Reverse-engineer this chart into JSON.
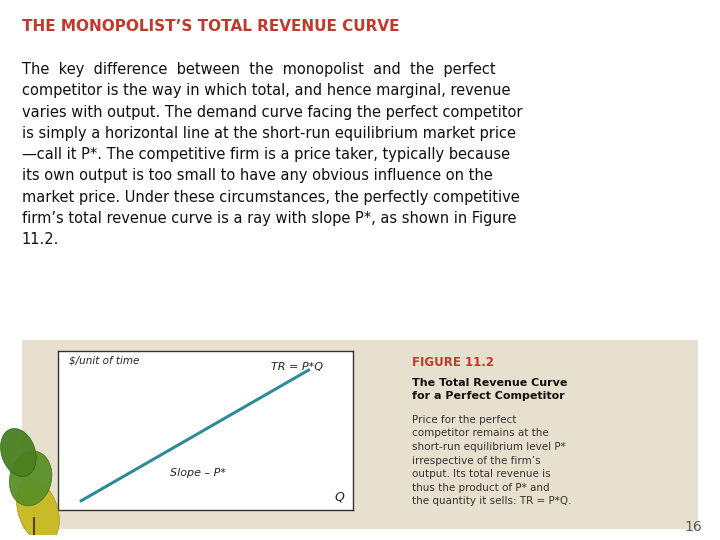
{
  "title": "THE MONOPOLIST’S TOTAL REVENUE CURVE",
  "title_color": "#c0392b",
  "title_fontsize": 11,
  "body_text": "The  key  difference  between  the  monopolist  and  the  perfect\ncompetitor is the way in which total, and hence marginal, revenue\nvaries with output. The demand curve facing the perfect competitor\nis simply a horizontal line at the short-run equilibrium market price\n—call it P*. The competitive firm is a price taker, typically because\nits own output is too small to have any obvious influence on the\nmarket price. Under these circumstances, the perfectly competitive\nfirm’s total revenue curve is a ray with slope P*, as shown in Figure\n11.2.",
  "body_fontsize": 10.5,
  "bg_color": "#ffffff",
  "figure_bg_color": "#e8e0cf",
  "graph_bg_color": "#ffffff",
  "graph_border_color": "#333333",
  "line_color": "#2e8b9a",
  "graph_ylabel": "$/unit of time",
  "graph_xlabel": "Q",
  "graph_line_label": "TR = P*Q",
  "graph_slope_label": "Slope – P*",
  "figure_title": "FIGURE 11.2",
  "figure_title_color": "#c0392b",
  "figure_subtitle": "The Total Revenue Curve\nfor a Perfect Competitor",
  "figure_body": "Price for the perfect\ncompetitor remains at the\nshort-run equilibrium level P*\nirrespective of the firm’s\noutput. Its total revenue is\nthus the product of P* and\nthe quantity it sells: TR = P*Q.",
  "page_number": "16"
}
